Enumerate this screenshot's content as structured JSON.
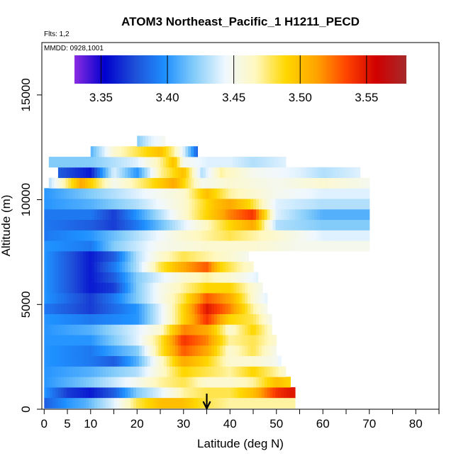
{
  "chart_data": {
    "type": "heatmap",
    "title": "ATOM3 Northeast_Pacific_1 H1211_PECD",
    "flights_label": "Flts: 1,2",
    "dates_label": "MMDD: 0928,1001",
    "xlabel": "Latitude (deg N)",
    "ylabel": "Altitude (m)",
    "xlim": [
      -0.5,
      85
    ],
    "ylim": [
      0,
      17500
    ],
    "x_ticks": [
      0,
      5,
      10,
      20,
      30,
      40,
      50,
      60,
      70,
      80
    ],
    "x_tick_labels": [
      "0",
      "5",
      "10",
      "20",
      "30",
      "40",
      "50",
      "60",
      "70",
      "80"
    ],
    "x_minor_ticks": [
      15,
      25,
      35,
      45,
      55,
      65,
      75,
      85
    ],
    "y_ticks": [
      0,
      5000,
      10000,
      15000
    ],
    "y_tick_labels": [
      "0",
      "5000",
      "10000",
      "15000"
    ],
    "colorbar": {
      "min": 3.33,
      "max": 3.58,
      "ticks": [
        3.35,
        3.4,
        3.45,
        3.5,
        3.55
      ],
      "tick_labels": [
        "3.35",
        "3.40",
        "3.45",
        "3.50",
        "3.55"
      ],
      "colors": [
        "#8a2be2",
        "#0000cd",
        "#1e4fd8",
        "#1e90ff",
        "#87cefa",
        "#f0f8ff",
        "#fff8c0",
        "#ffd700",
        "#ffa500",
        "#ff4500",
        "#d00000",
        "#a52a2a"
      ]
    },
    "arrow_marker_latitude": 35,
    "grid": false,
    "altitude_rows": [
      {
        "alt": 300,
        "lat_range": [
          0,
          54
        ],
        "values": [
          [
            0,
            3.38
          ],
          [
            5,
            3.4
          ],
          [
            9,
            3.41
          ],
          [
            15,
            3.44
          ],
          [
            20,
            3.48
          ],
          [
            25,
            3.5
          ],
          [
            30,
            3.5
          ],
          [
            35,
            3.48
          ],
          [
            40,
            3.47
          ],
          [
            45,
            3.47
          ],
          [
            50,
            3.47
          ],
          [
            54,
            3.47
          ]
        ]
      },
      {
        "alt": 800,
        "lat_range": [
          0,
          54
        ],
        "values": [
          [
            0,
            3.4
          ],
          [
            5,
            3.37
          ],
          [
            10,
            3.36
          ],
          [
            15,
            3.38
          ],
          [
            20,
            3.42
          ],
          [
            25,
            3.44
          ],
          [
            30,
            3.47
          ],
          [
            35,
            3.48
          ],
          [
            40,
            3.48
          ],
          [
            45,
            3.5
          ],
          [
            50,
            3.54
          ],
          [
            53,
            3.55
          ]
        ]
      },
      {
        "alt": 1300,
        "lat_range": [
          0,
          53
        ],
        "values": [
          [
            0,
            3.4
          ],
          [
            10,
            3.42
          ],
          [
            20,
            3.45
          ],
          [
            25,
            3.47
          ],
          [
            30,
            3.48
          ],
          [
            35,
            3.46
          ],
          [
            40,
            3.46
          ],
          [
            45,
            3.47
          ],
          [
            50,
            3.5
          ],
          [
            53,
            3.49
          ]
        ]
      },
      {
        "alt": 1800,
        "lat_range": [
          0,
          52
        ],
        "values": [
          [
            0,
            3.4
          ],
          [
            10,
            3.41
          ],
          [
            20,
            3.43
          ],
          [
            25,
            3.46
          ],
          [
            30,
            3.49
          ],
          [
            35,
            3.48
          ],
          [
            40,
            3.47
          ],
          [
            45,
            3.49
          ],
          [
            50,
            3.47
          ],
          [
            52,
            3.46
          ]
        ]
      },
      {
        "alt": 2300,
        "lat_range": [
          0,
          51
        ],
        "values": [
          [
            0,
            3.4
          ],
          [
            10,
            3.39
          ],
          [
            15,
            3.38
          ],
          [
            20,
            3.41
          ],
          [
            25,
            3.46
          ],
          [
            30,
            3.51
          ],
          [
            35,
            3.49
          ],
          [
            40,
            3.46
          ],
          [
            45,
            3.46
          ],
          [
            50,
            3.45
          ],
          [
            51,
            3.44
          ]
        ]
      },
      {
        "alt": 2800,
        "lat_range": [
          0,
          50
        ],
        "values": [
          [
            0,
            3.4
          ],
          [
            10,
            3.39
          ],
          [
            20,
            3.42
          ],
          [
            25,
            3.48
          ],
          [
            30,
            3.53
          ],
          [
            35,
            3.51
          ],
          [
            40,
            3.46
          ],
          [
            45,
            3.48
          ],
          [
            50,
            3.45
          ]
        ]
      },
      {
        "alt": 3300,
        "lat_range": [
          0,
          50
        ],
        "values": [
          [
            0,
            3.4
          ],
          [
            10,
            3.4
          ],
          [
            20,
            3.44
          ],
          [
            25,
            3.48
          ],
          [
            30,
            3.54
          ],
          [
            35,
            3.52
          ],
          [
            40,
            3.47
          ],
          [
            45,
            3.48
          ],
          [
            50,
            3.46
          ]
        ]
      },
      {
        "alt": 3800,
        "lat_range": [
          0,
          49
        ],
        "values": [
          [
            0,
            3.4
          ],
          [
            10,
            3.41
          ],
          [
            20,
            3.44
          ],
          [
            25,
            3.46
          ],
          [
            30,
            3.52
          ],
          [
            35,
            3.51
          ],
          [
            40,
            3.46
          ],
          [
            45,
            3.49
          ],
          [
            49,
            3.46
          ]
        ]
      },
      {
        "alt": 4300,
        "lat_range": [
          0,
          49
        ],
        "values": [
          [
            0,
            3.4
          ],
          [
            10,
            3.39
          ],
          [
            20,
            3.4
          ],
          [
            25,
            3.44
          ],
          [
            30,
            3.49
          ],
          [
            35,
            3.54
          ],
          [
            40,
            3.49
          ],
          [
            45,
            3.48
          ],
          [
            49,
            3.45
          ]
        ]
      },
      {
        "alt": 4800,
        "lat_range": [
          0,
          48
        ],
        "values": [
          [
            0,
            3.39
          ],
          [
            10,
            3.37
          ],
          [
            20,
            3.4
          ],
          [
            25,
            3.44
          ],
          [
            30,
            3.49
          ],
          [
            35,
            3.55
          ],
          [
            40,
            3.52
          ],
          [
            45,
            3.47
          ],
          [
            48,
            3.45
          ]
        ]
      },
      {
        "alt": 5300,
        "lat_range": [
          0,
          48
        ],
        "values": [
          [
            0,
            3.4
          ],
          [
            10,
            3.37
          ],
          [
            15,
            3.39
          ],
          [
            20,
            3.42
          ],
          [
            25,
            3.45
          ],
          [
            30,
            3.48
          ],
          [
            35,
            3.53
          ],
          [
            40,
            3.51
          ],
          [
            45,
            3.46
          ],
          [
            48,
            3.44
          ]
        ]
      },
      {
        "alt": 5800,
        "lat_range": [
          0,
          47
        ],
        "values": [
          [
            0,
            3.4
          ],
          [
            10,
            3.36
          ],
          [
            15,
            3.37
          ],
          [
            20,
            3.42
          ],
          [
            25,
            3.45
          ],
          [
            30,
            3.47
          ],
          [
            35,
            3.49
          ],
          [
            40,
            3.49
          ],
          [
            45,
            3.46
          ],
          [
            47,
            3.45
          ]
        ]
      },
      {
        "alt": 6300,
        "lat_range": [
          0,
          46
        ],
        "values": [
          [
            0,
            3.4
          ],
          [
            10,
            3.36
          ],
          [
            15,
            3.38
          ],
          [
            20,
            3.42
          ],
          [
            25,
            3.44
          ],
          [
            30,
            3.46
          ],
          [
            35,
            3.47
          ],
          [
            40,
            3.46
          ],
          [
            46,
            3.44
          ]
        ]
      },
      {
        "alt": 6800,
        "lat_range": [
          0,
          45
        ],
        "values": [
          [
            0,
            3.4
          ],
          [
            10,
            3.36
          ],
          [
            15,
            3.39
          ],
          [
            20,
            3.43
          ],
          [
            25,
            3.48
          ],
          [
            30,
            3.51
          ],
          [
            35,
            3.53
          ],
          [
            38,
            3.49
          ],
          [
            42,
            3.47
          ],
          [
            45,
            3.46
          ]
        ]
      },
      {
        "alt": 7300,
        "lat_range": [
          0,
          44
        ],
        "values": [
          [
            0,
            3.4
          ],
          [
            10,
            3.36
          ],
          [
            15,
            3.38
          ],
          [
            20,
            3.43
          ],
          [
            25,
            3.46
          ],
          [
            30,
            3.48
          ],
          [
            35,
            3.47
          ],
          [
            40,
            3.46
          ],
          [
            44,
            3.45
          ]
        ]
      },
      {
        "alt": 7800,
        "lat_range": [
          0,
          70
        ],
        "values": [
          [
            0,
            3.4
          ],
          [
            10,
            3.39
          ],
          [
            15,
            3.42
          ],
          [
            25,
            3.45
          ],
          [
            35,
            3.46
          ],
          [
            45,
            3.46
          ],
          [
            55,
            3.45
          ],
          [
            65,
            3.45
          ],
          [
            70,
            3.45
          ]
        ]
      },
      {
        "alt": 8300,
        "lat_range": [
          0,
          70
        ],
        "values": [
          [
            0,
            3.39
          ],
          [
            10,
            3.4
          ],
          [
            20,
            3.43
          ],
          [
            30,
            3.46
          ],
          [
            40,
            3.48
          ],
          [
            50,
            3.46
          ],
          [
            60,
            3.44
          ],
          [
            70,
            3.44
          ]
        ]
      },
      {
        "alt": 8800,
        "lat_range": [
          0,
          70
        ],
        "values": [
          [
            0,
            3.39
          ],
          [
            10,
            3.38
          ],
          [
            15,
            3.37
          ],
          [
            20,
            3.39
          ],
          [
            30,
            3.44
          ],
          [
            40,
            3.49
          ],
          [
            45,
            3.51
          ],
          [
            50,
            3.43
          ],
          [
            60,
            3.42
          ],
          [
            70,
            3.42
          ]
        ]
      },
      {
        "alt": 9300,
        "lat_range": [
          0,
          70
        ],
        "values": [
          [
            0,
            3.39
          ],
          [
            10,
            3.39
          ],
          [
            15,
            3.37
          ],
          [
            20,
            3.4
          ],
          [
            30,
            3.46
          ],
          [
            40,
            3.52
          ],
          [
            45,
            3.54
          ],
          [
            50,
            3.44
          ],
          [
            60,
            3.41
          ],
          [
            70,
            3.41
          ]
        ]
      },
      {
        "alt": 9800,
        "lat_range": [
          0,
          70
        ],
        "values": [
          [
            0,
            3.4
          ],
          [
            10,
            3.41
          ],
          [
            20,
            3.43
          ],
          [
            30,
            3.46
          ],
          [
            37,
            3.5
          ],
          [
            40,
            3.51
          ],
          [
            44,
            3.49
          ],
          [
            50,
            3.44
          ],
          [
            60,
            3.43
          ],
          [
            70,
            3.43
          ]
        ]
      },
      {
        "alt": 10300,
        "lat_range": [
          0,
          70
        ],
        "values": [
          [
            0,
            3.4
          ],
          [
            10,
            3.42
          ],
          [
            20,
            3.44
          ],
          [
            30,
            3.46
          ],
          [
            35,
            3.5
          ],
          [
            40,
            3.47
          ],
          [
            45,
            3.46
          ],
          [
            50,
            3.45
          ],
          [
            60,
            3.44
          ],
          [
            70,
            3.44
          ]
        ]
      },
      {
        "alt": 10800,
        "lat_range": [
          1,
          70
        ],
        "values": [
          [
            1,
            3.43
          ],
          [
            8,
            3.51
          ],
          [
            15,
            3.45
          ],
          [
            22,
            3.48
          ],
          [
            28,
            3.51
          ],
          [
            34,
            3.45
          ],
          [
            40,
            3.46
          ],
          [
            50,
            3.45
          ],
          [
            60,
            3.46
          ],
          [
            70,
            3.45
          ]
        ]
      },
      {
        "alt": 11300,
        "lat_range": [
          3,
          68
        ],
        "values": [
          [
            3,
            3.38
          ],
          [
            10,
            3.36
          ],
          [
            15,
            3.44
          ],
          [
            20,
            3.4
          ],
          [
            25,
            3.47
          ],
          [
            30,
            3.5
          ],
          [
            34,
            3.43
          ],
          [
            38,
            3.47
          ],
          [
            45,
            3.45
          ],
          [
            55,
            3.44
          ],
          [
            60,
            3.43
          ],
          [
            68,
            3.44
          ]
        ]
      },
      {
        "alt": 11800,
        "lat_range": [
          1,
          52
        ],
        "values": [
          [
            1,
            3.42
          ],
          [
            10,
            3.42
          ],
          [
            20,
            3.44
          ],
          [
            25,
            3.47
          ],
          [
            28,
            3.5
          ],
          [
            30,
            3.45
          ],
          [
            35,
            3.44
          ],
          [
            40,
            3.44
          ],
          [
            45,
            3.43
          ],
          [
            52,
            3.44
          ]
        ]
      },
      {
        "alt": 12300,
        "lat_range": [
          10,
          33
        ],
        "values": [
          [
            10,
            3.41
          ],
          [
            15,
            3.46
          ],
          [
            20,
            3.48
          ],
          [
            25,
            3.5
          ],
          [
            28,
            3.47
          ],
          [
            30,
            3.44
          ],
          [
            33,
            3.38
          ]
        ]
      },
      {
        "alt": 12800,
        "lat_range": [
          20,
          26
        ],
        "values": [
          [
            20,
            3.42
          ],
          [
            23,
            3.44
          ],
          [
            26,
            3.45
          ]
        ]
      }
    ]
  }
}
